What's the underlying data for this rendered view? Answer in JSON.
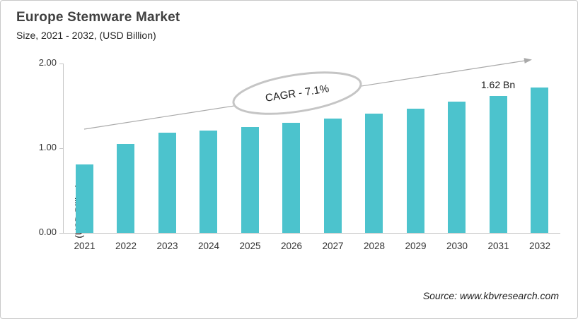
{
  "header": {
    "title": "Europe Stemware Market",
    "subtitle": "Size, 2021 - 2032, (USD Billion)"
  },
  "chart_data": {
    "type": "bar",
    "categories": [
      "2021",
      "2022",
      "2023",
      "2024",
      "2025",
      "2026",
      "2027",
      "2028",
      "2029",
      "2030",
      "2031",
      "2032"
    ],
    "values": [
      0.81,
      1.05,
      1.18,
      1.21,
      1.25,
      1.3,
      1.35,
      1.41,
      1.47,
      1.55,
      1.62,
      1.72
    ],
    "title": "Europe Stemware Market",
    "subtitle": "Size, 2021 - 2032, (USD Billion)",
    "xlabel": "",
    "ylabel": "(USD Billion)",
    "ylim": [
      0,
      2
    ],
    "yticks": [
      "0.00",
      "1.00",
      "2.00"
    ],
    "grid": false,
    "legend_position": "none",
    "bar_color": "#4CC3CD",
    "annotations": [
      {
        "type": "ellipse-callout",
        "text": "CAGR - 7.1%"
      },
      {
        "type": "data-label",
        "text": "1.62 Bn",
        "category": "2031",
        "value": 1.62
      },
      {
        "type": "trend-arrow",
        "direction": "up-right"
      }
    ]
  },
  "axis": {
    "ylabel": "(USD Billion)"
  },
  "annotation": {
    "cagr_label": "CAGR - 7.1%",
    "value_label_2031": "1.62 Bn"
  },
  "footer": {
    "source": "Source: www.kbvresearch.com"
  },
  "colors": {
    "bar": "#4CC3CD",
    "axis_line": "#c6c6c6",
    "arrow": "#a9a9a9",
    "ellipse_border": "#c5c5c5",
    "title_text": "#404040"
  }
}
